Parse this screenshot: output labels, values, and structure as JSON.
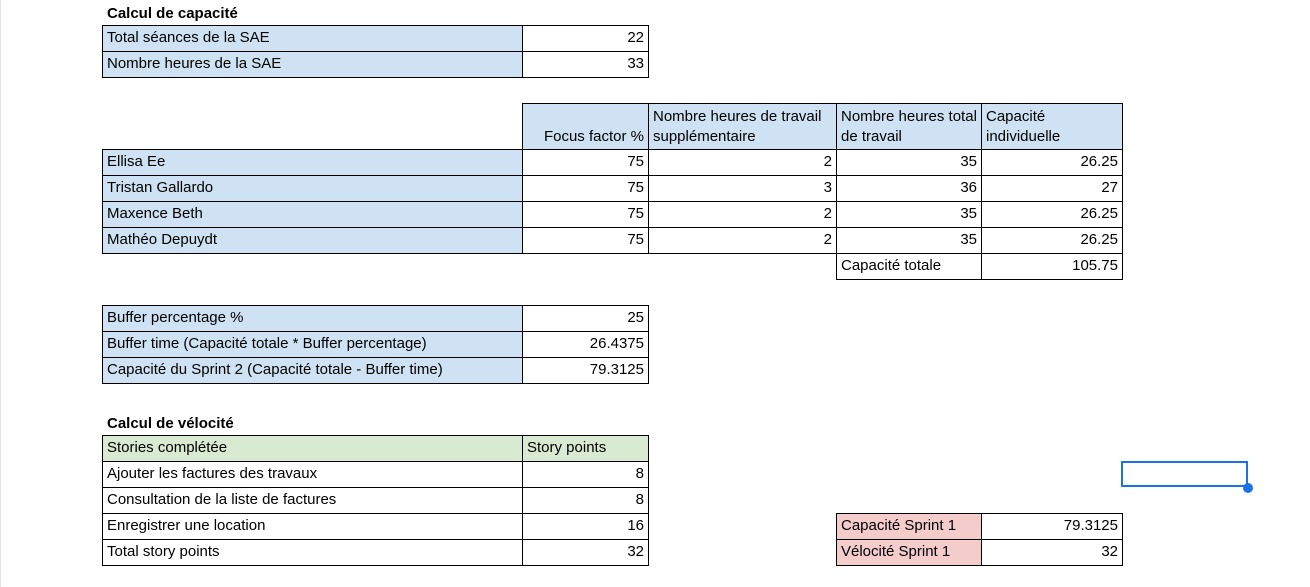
{
  "capacity": {
    "title": "Calcul de capacité",
    "rows": [
      {
        "label": "Total séances de la SAE",
        "value": "22"
      },
      {
        "label": "Nombre heures de la SAE",
        "value": "33"
      }
    ]
  },
  "team": {
    "headers": [
      "Focus factor %",
      "Nombre heures de travail supplémentaire",
      "Nombre heures total de travail",
      "Capacité individuelle"
    ],
    "members": [
      {
        "name": "Ellisa Ee",
        "focus": "75",
        "extra": "2",
        "total": "35",
        "capacity": "26.25"
      },
      {
        "name": "Tristan Gallardo",
        "focus": "75",
        "extra": "3",
        "total": "36",
        "capacity": "27"
      },
      {
        "name": "Maxence Beth",
        "focus": "75",
        "extra": "2",
        "total": "35",
        "capacity": "26.25"
      },
      {
        "name": "Mathéo Depuydt",
        "focus": "75",
        "extra": "2",
        "total": "35",
        "capacity": "26.25"
      }
    ],
    "total_label": "Capacité totale",
    "total_value": "105.75"
  },
  "buffer": {
    "rows": [
      {
        "label": "Buffer percentage %",
        "value": "25"
      },
      {
        "label": "Buffer time (Capacité totale * Buffer percentage)",
        "value": "26.4375"
      },
      {
        "label": "Capacité du Sprint 2 (Capacité totale - Buffer time)",
        "value": "79.3125"
      }
    ]
  },
  "velocity": {
    "title": "Calcul de vélocité",
    "header_stories": "Stories complétée",
    "header_points": "Story points",
    "rows": [
      {
        "label": "Ajouter les factures des travaux",
        "value": "8"
      },
      {
        "label": "Consultation de la liste de factures",
        "value": "8"
      },
      {
        "label": "Enregistrer une location",
        "value": "16"
      },
      {
        "label": "Total story points",
        "value": "32"
      }
    ]
  },
  "sprint": {
    "rows": [
      {
        "label": "Capacité Sprint 1",
        "value": "79.3125"
      },
      {
        "label": "Vélocité Sprint 1",
        "value": "32"
      }
    ]
  },
  "colors": {
    "header_blue": "#cfe2f3",
    "header_green": "#d9ead3",
    "header_red": "#f4cccc",
    "selection": "#1a73e8"
  }
}
